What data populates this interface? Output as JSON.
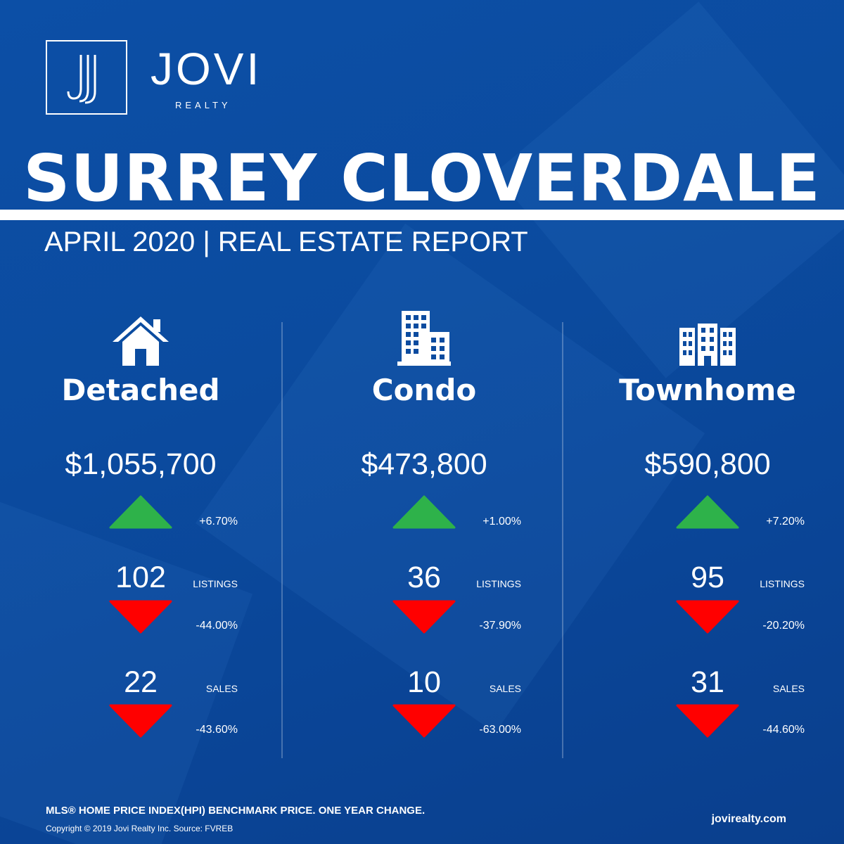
{
  "brand": {
    "name": "JOVI",
    "sub": "REALTY",
    "mark": "J"
  },
  "report": {
    "city": "SURREY CLOVERDALE",
    "subtitle": "APRIL 2020 | REAL ESTATE REPORT"
  },
  "colors": {
    "background": "#0b4b9f",
    "up": "#2eb24a",
    "down": "#ff0000",
    "text": "#ffffff"
  },
  "categories": [
    {
      "icon": "house-icon",
      "name": "Detached",
      "price": "$1,055,700",
      "price_change": "+6.70%",
      "price_trend": "up",
      "listings": "102",
      "listings_label": "LISTINGS",
      "listings_change": "-44.00%",
      "listings_trend": "down",
      "sales": "22",
      "sales_label": "SALES",
      "sales_change": "-43.60%",
      "sales_trend": "down"
    },
    {
      "icon": "condo-building-icon",
      "name": "Condo",
      "price": "$473,800",
      "price_change": "+1.00%",
      "price_trend": "up",
      "listings": "36",
      "listings_label": "LISTINGS",
      "listings_change": "-37.90%",
      "listings_trend": "down",
      "sales": "10",
      "sales_label": "SALES",
      "sales_change": "-63.00%",
      "sales_trend": "down"
    },
    {
      "icon": "townhome-icon",
      "name": "Townhome",
      "price": "$590,800",
      "price_change": "+7.20%",
      "price_trend": "up",
      "listings": "95",
      "listings_label": "LISTINGS",
      "listings_change": "-20.20%",
      "listings_trend": "down",
      "sales": "31",
      "sales_label": "SALES",
      "sales_change": "-44.60%",
      "sales_trend": "down"
    }
  ],
  "footer": {
    "note": "MLS® HOME PRICE INDEX(HPI) BENCHMARK PRICE. ONE YEAR CHANGE.",
    "copyright": "Copyright © 2019 Jovi Realty Inc. Source: FVREB",
    "website": "jovirealty.com"
  }
}
